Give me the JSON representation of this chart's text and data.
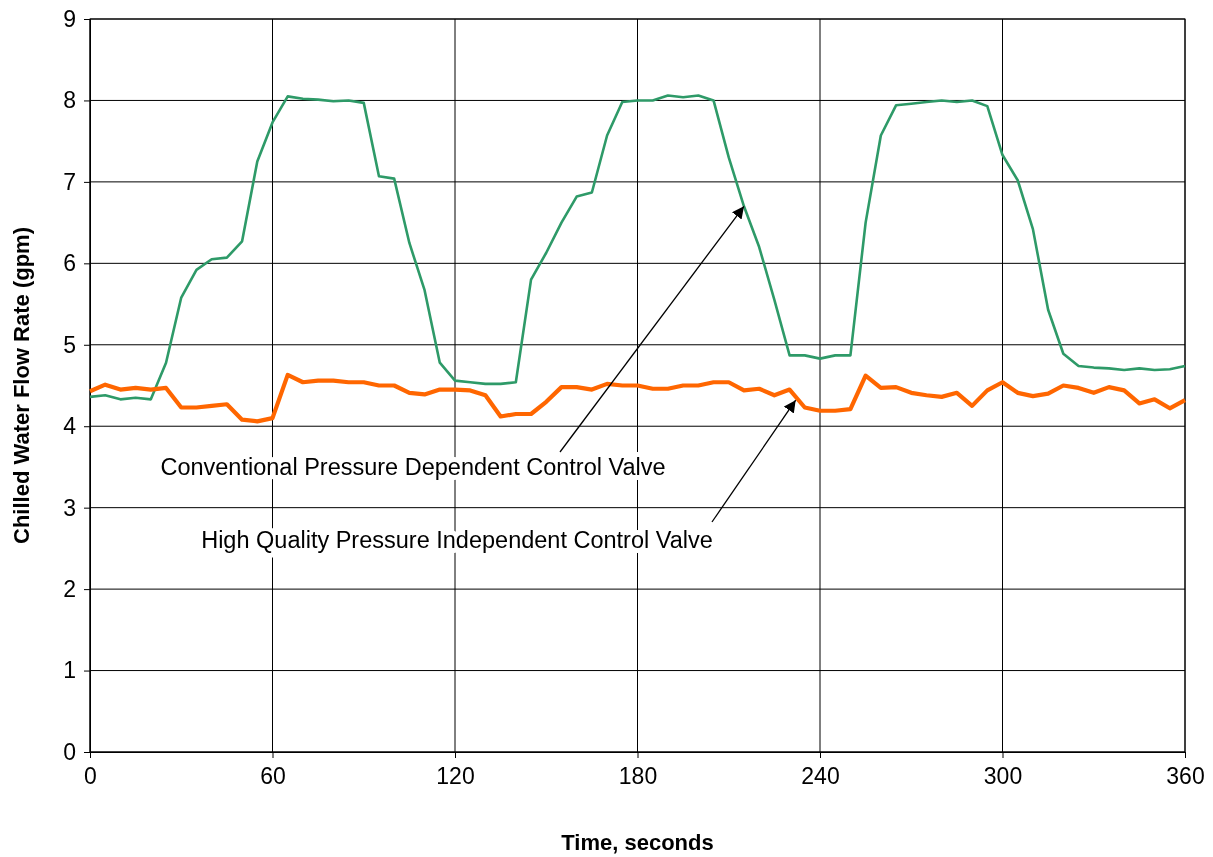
{
  "chart_data": {
    "type": "line",
    "xlabel": "Time, seconds",
    "ylabel": "Chilled Water Flow Rate (gpm)",
    "xlim": [
      0,
      360
    ],
    "xticks": [
      0,
      60,
      120,
      180,
      240,
      300,
      360
    ],
    "ylim": [
      0,
      9
    ],
    "yticks": [
      0,
      1,
      2,
      3,
      4,
      5,
      6,
      7,
      8,
      9
    ],
    "grid": true,
    "marker": "none",
    "line_style": "solid",
    "x": [
      0,
      5,
      10,
      15,
      20,
      25,
      30,
      35,
      40,
      45,
      50,
      55,
      60,
      65,
      70,
      75,
      80,
      85,
      90,
      95,
      100,
      105,
      110,
      115,
      120,
      125,
      130,
      135,
      140,
      145,
      150,
      155,
      160,
      165,
      170,
      175,
      180,
      185,
      190,
      195,
      200,
      205,
      210,
      215,
      220,
      225,
      230,
      235,
      240,
      245,
      250,
      255,
      260,
      265,
      270,
      275,
      280,
      285,
      290,
      295,
      300,
      305,
      310,
      315,
      320,
      325,
      330,
      335,
      340,
      345,
      350,
      355,
      360
    ],
    "series": [
      {
        "color": "#2e9a68",
        "values": [
          4.36,
          4.38,
          4.33,
          4.35,
          4.33,
          4.78,
          5.58,
          5.92,
          6.05,
          6.07,
          6.27,
          7.25,
          7.73,
          8.05,
          8.02,
          8.01,
          7.99,
          8.0,
          7.97,
          7.07,
          7.04,
          6.25,
          5.67,
          4.78,
          4.56,
          4.54,
          4.52,
          4.52,
          4.54,
          5.8,
          6.13,
          6.5,
          6.82,
          6.87,
          7.57,
          7.98,
          8.0,
          8.0,
          8.06,
          8.04,
          8.06,
          8.0,
          7.3,
          6.7,
          6.2,
          5.55,
          4.87,
          4.87,
          4.83,
          4.87,
          4.87,
          6.5,
          7.57,
          7.94,
          7.96,
          7.98,
          8.0,
          7.98,
          8.0,
          7.93,
          7.33,
          7.02,
          6.42,
          5.43,
          4.89,
          4.74,
          4.72,
          4.71,
          4.69,
          4.71,
          4.69,
          4.7,
          4.74
        ]
      },
      {
        "color": "#ff6600",
        "values": [
          4.43,
          4.51,
          4.45,
          4.47,
          4.45,
          4.47,
          4.23,
          4.23,
          4.25,
          4.27,
          4.08,
          4.06,
          4.1,
          4.63,
          4.54,
          4.56,
          4.56,
          4.54,
          4.54,
          4.5,
          4.5,
          4.41,
          4.39,
          4.45,
          4.45,
          4.44,
          4.38,
          4.12,
          4.15,
          4.15,
          4.3,
          4.48,
          4.48,
          4.45,
          4.52,
          4.5,
          4.5,
          4.46,
          4.46,
          4.5,
          4.5,
          4.54,
          4.54,
          4.44,
          4.46,
          4.38,
          4.45,
          4.23,
          4.19,
          4.19,
          4.21,
          4.62,
          4.47,
          4.48,
          4.41,
          4.38,
          4.36,
          4.41,
          4.25,
          4.44,
          4.54,
          4.41,
          4.37,
          4.4,
          4.5,
          4.47,
          4.41,
          4.48,
          4.44,
          4.28,
          4.33,
          4.22,
          4.32
        ]
      }
    ],
    "annotations": [
      {
        "text": "Conventional Pressure Dependent Control Valve",
        "x": 215,
        "y": 6.7
      },
      {
        "text": "High Quality Pressure Independent Control Valve",
        "x": 232,
        "y": 4.32
      }
    ]
  }
}
